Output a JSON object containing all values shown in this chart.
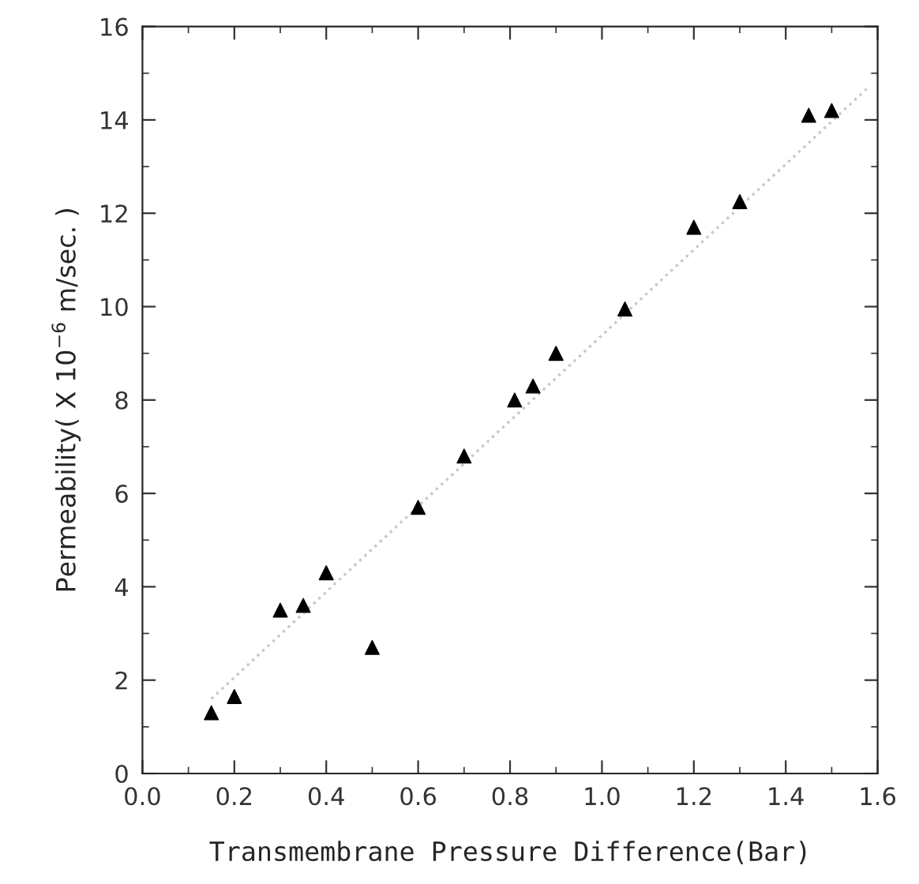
{
  "chart_data": {
    "type": "scatter",
    "xlabel": "Transmembrane Pressure Difference(Bar)",
    "ylabel": "Permeability( X 10$^{−6}$ m/sec. )",
    "xlim": [
      0.0,
      1.6
    ],
    "xticks": [
      {
        "value": 0.0,
        "label": "0.0"
      },
      {
        "value": 0.2,
        "label": "0.2"
      },
      {
        "value": 0.4,
        "label": "0.4"
      },
      {
        "value": 0.6,
        "label": "0.6"
      },
      {
        "value": 0.8,
        "label": "0.8"
      },
      {
        "value": 1.0,
        "label": "1.0"
      },
      {
        "value": 1.2,
        "label": "1.2"
      },
      {
        "value": 1.4,
        "label": "1.4"
      },
      {
        "value": 1.6,
        "label": "1.6"
      }
    ],
    "ylim": [
      0,
      16
    ],
    "yticks": [
      0,
      2,
      4,
      6,
      8,
      10,
      12,
      14,
      16
    ],
    "grid": false,
    "legend": false,
    "series": [
      {
        "color": "#000000",
        "marker": "triangle",
        "x": [
          0.15,
          0.2,
          0.3,
          0.35,
          0.4,
          0.5,
          0.6,
          0.7,
          0.81,
          0.85,
          0.9,
          1.05,
          1.2,
          1.3,
          1.45,
          1.5
        ],
        "values": [
          1.3,
          1.65,
          3.5,
          3.6,
          4.3,
          2.7,
          5.7,
          6.8,
          8.0,
          8.3,
          9.0,
          9.95,
          11.7,
          12.25,
          14.1,
          14.2
        ]
      },
      {
        "type": "line",
        "color": "#c8c8c8",
        "line_style": "dotted",
        "x": [
          0.15,
          1.58
        ],
        "values": [
          1.6,
          14.7
        ]
      }
    ]
  }
}
